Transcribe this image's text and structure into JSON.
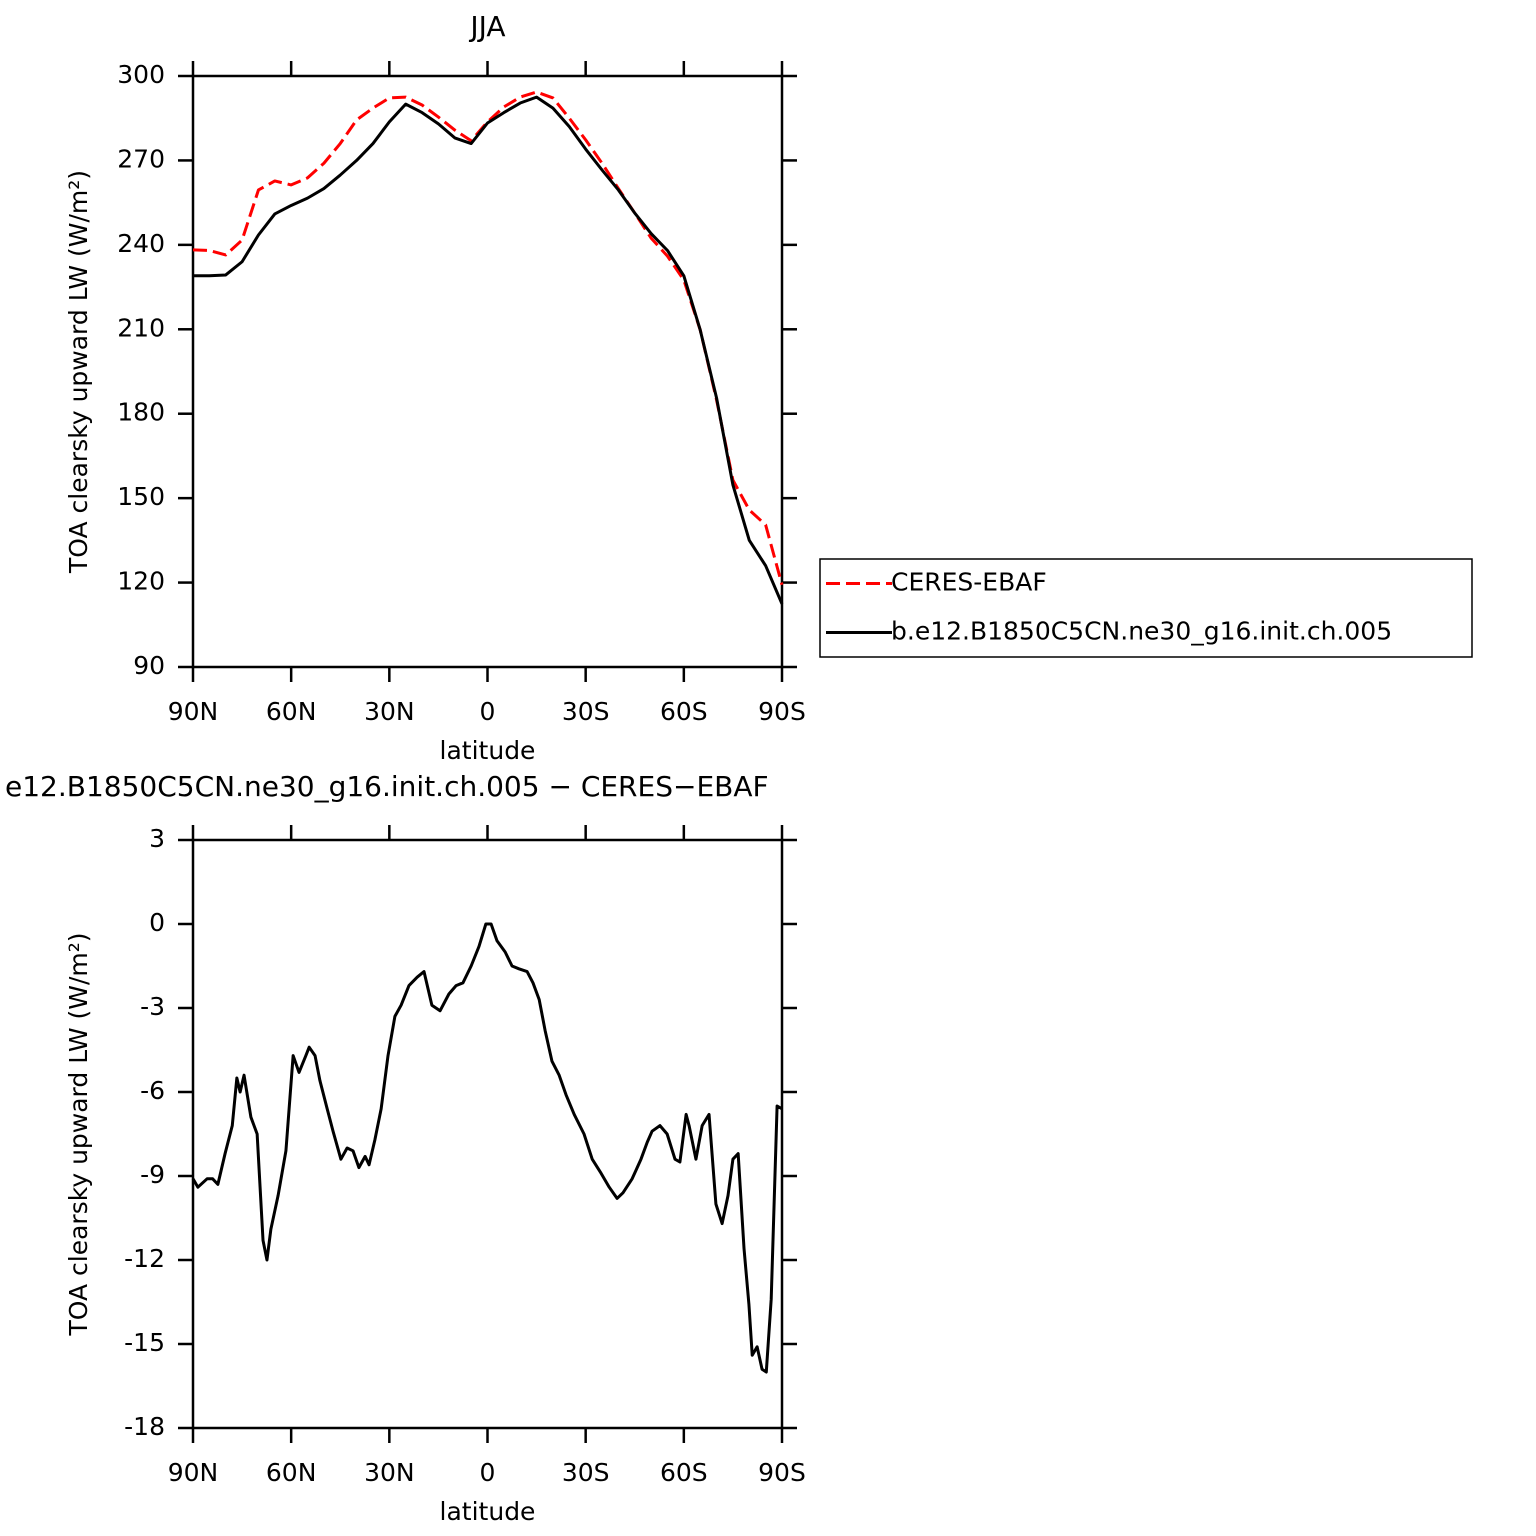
{
  "chart_data": [
    {
      "type": "line",
      "title": "JJA",
      "xlabel": "latitude",
      "ylabel": "TOA clearsky upward LW (W/m²)",
      "xlim": [
        90,
        -90
      ],
      "xticks": [
        {
          "value": 90,
          "label": "90N"
        },
        {
          "value": 60,
          "label": "60N"
        },
        {
          "value": 30,
          "label": "30N"
        },
        0,
        {
          "value": -30,
          "label": "30S"
        },
        {
          "value": -60,
          "label": "60S"
        },
        {
          "value": -90,
          "label": "90S"
        }
      ],
      "ylim": [
        90,
        300
      ],
      "yticks": [
        90,
        120,
        150,
        180,
        210,
        240,
        270,
        300
      ],
      "legend": "right",
      "x": [
        90,
        85,
        80,
        75,
        70,
        65,
        60,
        55,
        50,
        45,
        40,
        35,
        30,
        25,
        20,
        15,
        10,
        5,
        0,
        -5,
        -10,
        -15,
        -20,
        -25,
        -30,
        -35,
        -40,
        -45,
        -50,
        -55,
        -60,
        -65,
        -70,
        -75,
        -80,
        -85,
        -90
      ],
      "series": [
        {
          "name": "CERES-EBAF",
          "color": "#ff0000",
          "dashed": true,
          "values": [
            238.2,
            238,
            236.4,
            241.7,
            259.5,
            262.7,
            261.3,
            263.8,
            269,
            276,
            284.4,
            288.6,
            292.2,
            292.5,
            289.7,
            285.4,
            280.8,
            277,
            283.7,
            289,
            292.5,
            294.3,
            292.2,
            285,
            277.3,
            269,
            260,
            251.3,
            242.4,
            236,
            227.5,
            209.8,
            184.9,
            156.4,
            145.8,
            140.5,
            119.2
          ]
        },
        {
          "name": "b.e12.B1850C5CN.ne30_g16.init.ch.005",
          "color": "#000000",
          "dashed": false,
          "values": [
            229,
            229,
            229.3,
            234,
            243.5,
            251,
            254,
            256.6,
            260,
            264.8,
            270,
            276,
            283.7,
            290,
            287,
            283,
            278,
            276,
            283.3,
            287,
            290.4,
            292.5,
            288.6,
            282,
            274,
            266.6,
            259.5,
            251.3,
            244,
            238,
            229,
            209.8,
            185.6,
            154.7,
            135,
            126,
            112.4
          ]
        }
      ]
    },
    {
      "type": "line",
      "title": "e12.B1850C5CN.ne30_g16.init.ch.005 − CERES−EBAF",
      "xlabel": "latitude",
      "ylabel": "TOA clearsky upward LW (W/m²)",
      "xlim": [
        90,
        -90
      ],
      "xticks": [
        {
          "value": 90,
          "label": "90N"
        },
        {
          "value": 60,
          "label": "60N"
        },
        {
          "value": 30,
          "label": "30N"
        },
        0,
        {
          "value": -30,
          "label": "30S"
        },
        {
          "value": -60,
          "label": "60S"
        },
        {
          "value": -90,
          "label": "90S"
        }
      ],
      "ylim": [
        -18,
        3
      ],
      "yticks": [
        -18,
        -15,
        -12,
        -9,
        -6,
        -3,
        0,
        3
      ],
      "x": [
        90,
        88.5,
        85.7,
        84,
        82.4,
        80.2,
        78,
        76.6,
        75.6,
        74.4,
        72.3,
        70.4,
        68.6,
        67.4,
        66.2,
        64,
        61.6,
        59.4,
        57.6,
        55.5,
        54.5,
        52.7,
        51.2,
        49,
        47.2,
        44.8,
        42.9,
        41.1,
        39.3,
        37.4,
        36.2,
        34.4,
        32.5,
        30.4,
        28.3,
        26.4,
        24,
        21.5,
        19.4,
        17,
        14.5,
        11.8,
        9.6,
        7.5,
        5,
        2.6,
        0.5,
        -1.1,
        -2.9,
        -5.4,
        -7.5,
        -9.6,
        -12.1,
        -13.9,
        -15.8,
        -17.6,
        -19.7,
        -21.9,
        -24,
        -26.5,
        -29.5,
        -32,
        -34.7,
        -37.2,
        -39.6,
        -41.4,
        -44.2,
        -46.9,
        -48.8,
        -50.3,
        -52.7,
        -54.9,
        -57.3,
        -58.8,
        -60.7,
        -61.6,
        -63.7,
        -65.6,
        -67.7,
        -69.8,
        -71.7,
        -73.5,
        -75,
        -76.6,
        -78.4,
        -79.9,
        -80.9,
        -82.4,
        -83.9,
        -85.2,
        -86.7,
        -88.5,
        -90
      ],
      "series": [
        {
          "color": "#000000",
          "dashed": false,
          "values": [
            -9.1,
            -9.4,
            -9.1,
            -9.1,
            -9.3,
            -8.2,
            -7.2,
            -5.5,
            -6,
            -5.4,
            -6.9,
            -7.5,
            -11.3,
            -12,
            -10.9,
            -9.7,
            -8.1,
            -4.7,
            -5.3,
            -4.7,
            -4.4,
            -4.7,
            -5.6,
            -6.6,
            -7.4,
            -8.4,
            -8,
            -8.1,
            -8.7,
            -8.3,
            -8.6,
            -7.7,
            -6.6,
            -4.7,
            -3.3,
            -2.9,
            -2.2,
            -1.9,
            -1.7,
            -2.9,
            -3.1,
            -2.5,
            -2.2,
            -2.1,
            -1.5,
            -0.8,
            0,
            0,
            -0.6,
            -1,
            -1.5,
            -1.6,
            -1.7,
            -2.1,
            -2.7,
            -3.8,
            -4.9,
            -5.4,
            -6.1,
            -6.8,
            -7.5,
            -8.4,
            -8.9,
            -9.4,
            -9.8,
            -9.6,
            -9.1,
            -8.4,
            -7.8,
            -7.4,
            -7.2,
            -7.5,
            -8.4,
            -8.5,
            -6.8,
            -7.2,
            -8.4,
            -7.2,
            -6.8,
            -10,
            -10.7,
            -9.7,
            -8.4,
            -8.2,
            -11.6,
            -13.6,
            -15.4,
            -15.1,
            -15.9,
            -16,
            -13.4,
            -6.5,
            -6.6
          ]
        }
      ]
    }
  ]
}
